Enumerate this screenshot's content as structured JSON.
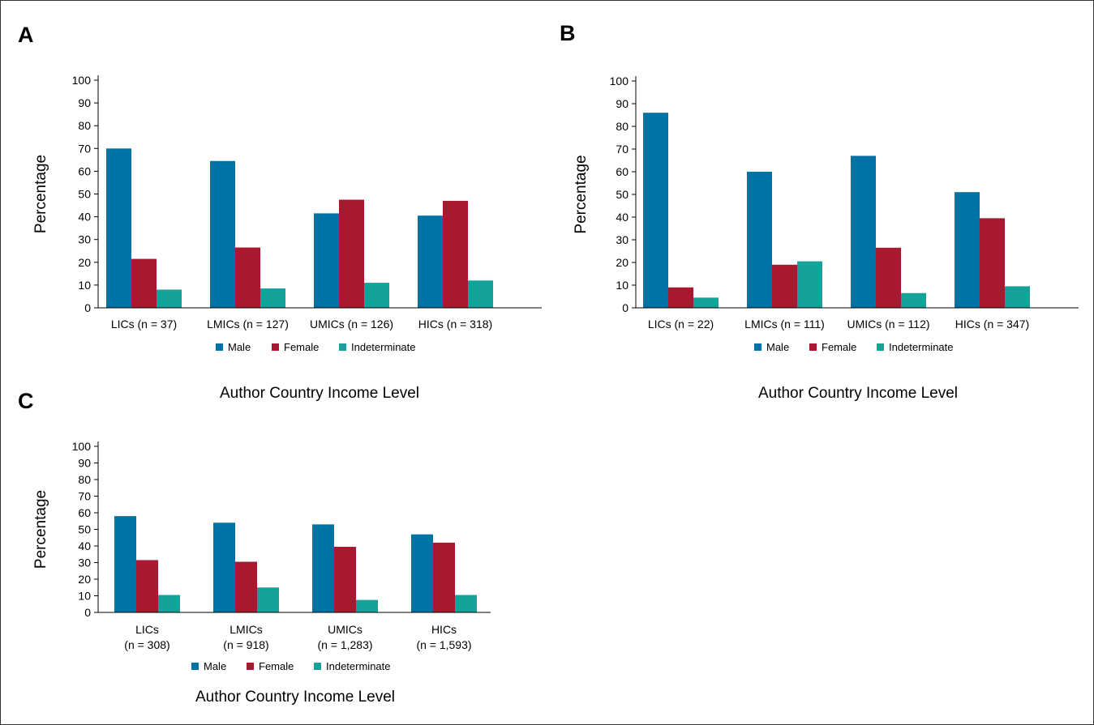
{
  "colors": {
    "male": "#0072A3",
    "female": "#A8182F",
    "indeterminate": "#15A29A"
  },
  "chart_data": [
    {
      "panel": "A",
      "type": "bar",
      "categories": [
        [
          "LICs (n = 37)"
        ],
        [
          "LMICs (n = 127)"
        ],
        [
          "UMICs (n = 126)"
        ],
        [
          "HICs (n = 318)"
        ]
      ],
      "series": [
        {
          "name": "Male",
          "values": [
            70,
            64.5,
            41.5,
            40.5
          ]
        },
        {
          "name": "Female",
          "values": [
            21.5,
            26.5,
            47.5,
            47
          ]
        },
        {
          "name": "Indeterminate",
          "values": [
            8,
            8.5,
            11,
            12
          ]
        }
      ],
      "ylabel": "Percentage",
      "xlabel": "Author Country Income Level",
      "ylim": [
        0,
        100
      ],
      "yticks": [
        "0",
        "10",
        "20",
        "30",
        "40",
        "50",
        "60",
        "70",
        "80",
        "90",
        "100"
      ],
      "legend": "below"
    },
    {
      "panel": "B",
      "type": "bar",
      "categories": [
        [
          "LICs (n = 22)"
        ],
        [
          "LMICs (n = 111)"
        ],
        [
          "UMICs (n = 112)"
        ],
        [
          "HICs (n = 347)"
        ]
      ],
      "series": [
        {
          "name": "Male",
          "values": [
            86,
            60,
            67,
            51
          ]
        },
        {
          "name": "Female",
          "values": [
            9,
            19,
            26.5,
            39.5
          ]
        },
        {
          "name": "Indeterminate",
          "values": [
            4.5,
            20.5,
            6.5,
            9.5
          ]
        }
      ],
      "ylabel": "Percentage",
      "xlabel": "Author Country Income Level",
      "ylim": [
        0,
        100
      ],
      "yticks": [
        "0",
        "10",
        "20",
        "30",
        "40",
        "50",
        "60",
        "70",
        "80",
        "90",
        "100"
      ],
      "legend": "below"
    },
    {
      "panel": "C",
      "type": "bar",
      "categories": [
        [
          "LICs",
          "(n = 308)"
        ],
        [
          "LMICs",
          "(n = 918)"
        ],
        [
          "UMICs",
          "(n = 1,283)"
        ],
        [
          "HICs",
          "(n = 1,593)"
        ]
      ],
      "series": [
        {
          "name": "Male",
          "values": [
            58,
            54,
            53,
            47
          ]
        },
        {
          "name": "Female",
          "values": [
            31.5,
            30.5,
            39.5,
            42
          ]
        },
        {
          "name": "Indeterminate",
          "values": [
            10.5,
            15,
            7.5,
            10.5
          ]
        }
      ],
      "ylabel": "Percentage",
      "xlabel": "Author Country Income Level",
      "ylim": [
        0,
        100
      ],
      "yticks": [
        "0",
        "10",
        "20",
        "30",
        "40",
        "50",
        "60",
        "70",
        "80",
        "90",
        "100"
      ],
      "legend": "below"
    }
  ]
}
